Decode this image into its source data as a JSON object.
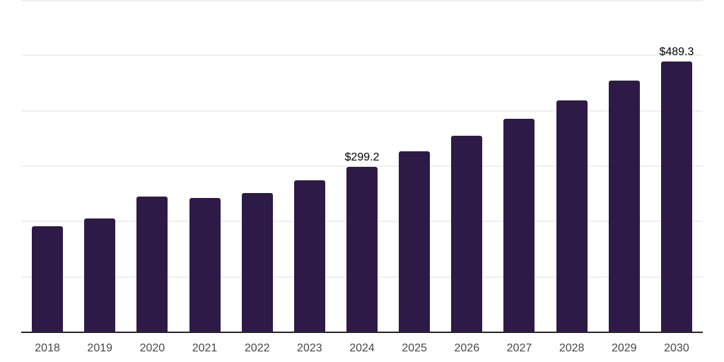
{
  "chart_data": {
    "type": "bar",
    "title": "",
    "xlabel": "",
    "ylabel": "",
    "categories": [
      "2018",
      "2019",
      "2020",
      "2021",
      "2022",
      "2023",
      "2024",
      "2025",
      "2026",
      "2027",
      "2028",
      "2029",
      "2030"
    ],
    "values": [
      191,
      205,
      245,
      242,
      252,
      275,
      299.2,
      327,
      355,
      386,
      419,
      455,
      489.3
    ],
    "value_prefix": "$",
    "ylim": [
      0,
      600
    ],
    "grid_step": 100,
    "grid": true,
    "legend": false,
    "y_axis_labels_visible": false,
    "data_labels": [
      {
        "category": "2024",
        "text": "$299.2"
      },
      {
        "category": "2030",
        "text": "$489.3"
      }
    ],
    "colors": {
      "bar": "#2e1a47",
      "axis": "#262626",
      "grid": "#efefef",
      "tick_label": "#474747",
      "value_label": "#000000"
    }
  }
}
